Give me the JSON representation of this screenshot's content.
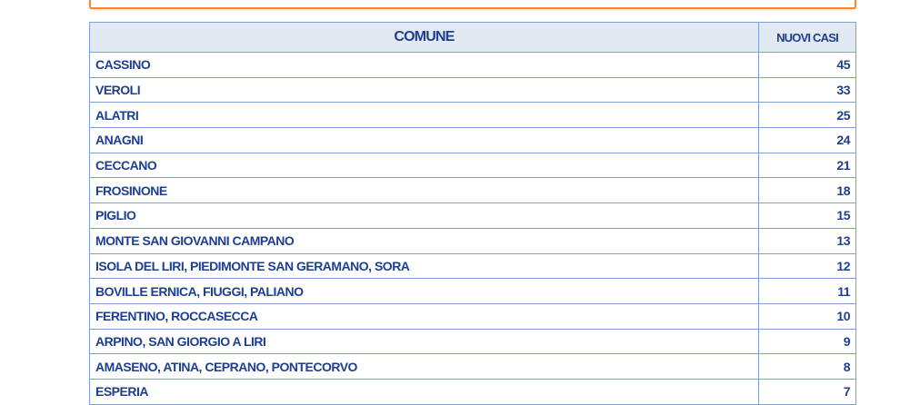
{
  "table": {
    "headers": {
      "comune": "COMUNE",
      "nuovi_casi": "NUOVI CASI"
    },
    "rows": [
      {
        "comune": "CASSINO",
        "casi": "45"
      },
      {
        "comune": "VEROLI",
        "casi": "33"
      },
      {
        "comune": "ALATRI",
        "casi": "25"
      },
      {
        "comune": "ANAGNI",
        "casi": "24"
      },
      {
        "comune": "CECCANO",
        "casi": "21"
      },
      {
        "comune": "FROSINONE",
        "casi": "18"
      },
      {
        "comune": "PIGLIO",
        "casi": "15"
      },
      {
        "comune": "MONTE SAN GIOVANNI CAMPANO",
        "casi": "13"
      },
      {
        "comune": "ISOLA DEL LIRI, PIEDIMONTE SAN GERAMANO, SORA",
        "casi": "12"
      },
      {
        "comune": "BOVILLE ERNICA, FIUGGI, PALIANO",
        "casi": "11"
      },
      {
        "comune": "FERENTINO, ROCCASECCA",
        "casi": "10"
      },
      {
        "comune": "ARPINO, SAN GIORGIO A LIRI",
        "casi": "9"
      },
      {
        "comune": "AMASENO, ATINA, CEPRANO, PONTECORVO",
        "casi": "8"
      },
      {
        "comune": "ESPERIA",
        "casi": "7"
      }
    ]
  },
  "colors": {
    "accent_border": "#f08a3a",
    "text": "#1e3f8e",
    "grid": "#7fa2d4",
    "header_bg": "#e3e9f3"
  }
}
